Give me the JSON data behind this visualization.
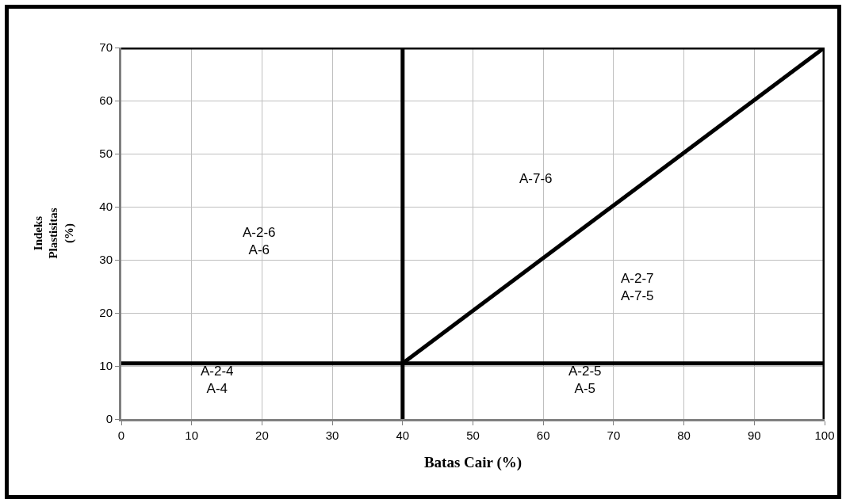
{
  "chart_data": {
    "type": "line",
    "xlabel": "Batas Cair (%)",
    "ylabel": "Indeks\nPlastisitas\n(%)",
    "series": [
      {
        "color": "#000000",
        "x": [
          40,
          100
        ],
        "values": [
          10.5,
          70
        ]
      }
    ],
    "xlim": [
      0,
      100
    ],
    "xticks": [
      0,
      10,
      20,
      30,
      40,
      50,
      60,
      70,
      80,
      90,
      100
    ],
    "ylim": [
      0,
      70
    ],
    "yticks": [
      0,
      10,
      20,
      30,
      40,
      50,
      60,
      70
    ],
    "grid": true,
    "marker": "none",
    "line_style": "solid",
    "ref_lines": [
      {
        "axis": "y",
        "value": 10.5,
        "color": "#000000"
      },
      {
        "axis": "y",
        "value": 70,
        "color": "#000000"
      },
      {
        "axis": "x",
        "value": 40,
        "color": "#000000"
      },
      {
        "axis": "x",
        "value": 100,
        "color": "#000000"
      }
    ],
    "annotations": [
      "A-2-6\nA-6",
      "A-2-4\nA-4",
      "A-7-6",
      "A-2-7\nA-7-5",
      "A-2-5\nA-5"
    ]
  }
}
